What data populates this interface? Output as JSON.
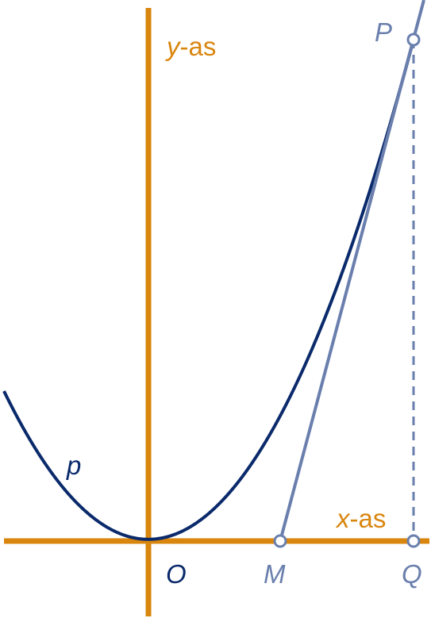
{
  "axes": {
    "y": {
      "variable": "y",
      "suffix": "-as"
    },
    "x": {
      "variable": "x",
      "suffix": "-as"
    }
  },
  "curve": {
    "label": "p"
  },
  "points": {
    "origin": "O",
    "M": "M",
    "Q": "Q",
    "P": "P"
  }
}
